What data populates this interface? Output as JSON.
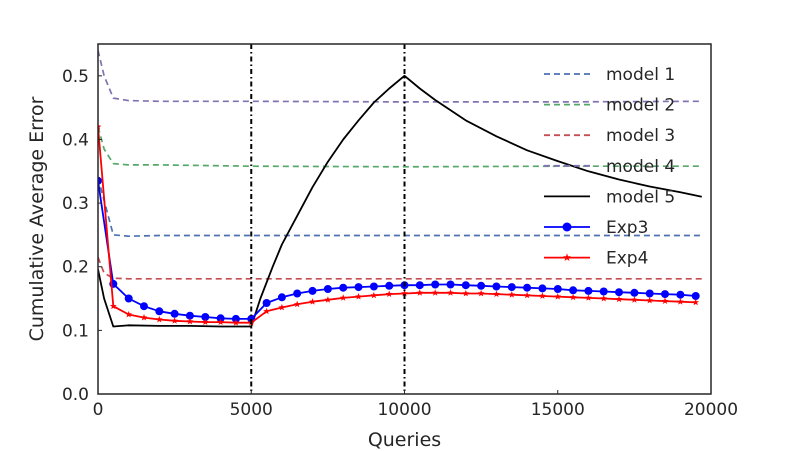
{
  "chart_data": {
    "type": "line",
    "title": "",
    "xlabel": "Queries",
    "ylabel": "Cumulative Average Error",
    "xlim": [
      0,
      20000
    ],
    "ylim": [
      0.0,
      0.55
    ],
    "xticks": [
      0,
      5000,
      10000,
      15000,
      20000
    ],
    "yticks": [
      0.0,
      0.1,
      0.2,
      0.3,
      0.4,
      0.5
    ],
    "xtick_labels": [
      "0",
      "5000",
      "10000",
      "15000",
      "20000"
    ],
    "ytick_labels": [
      "0.0",
      "0.1",
      "0.2",
      "0.3",
      "0.4",
      "0.5"
    ],
    "grid": false,
    "legend_position": "upper-right",
    "vlines": [
      5000,
      10000
    ],
    "series": [
      {
        "name": "model 1",
        "color": "#4c72b0",
        "style": "dashed",
        "x": [
          0,
          500,
          1000,
          2000,
          5000,
          10000,
          15000,
          19700
        ],
        "y": [
          0.34,
          0.25,
          0.248,
          0.249,
          0.249,
          0.249,
          0.249,
          0.249
        ]
      },
      {
        "name": "model 2",
        "color": "#55a868",
        "style": "dashed",
        "x": [
          0,
          200,
          500,
          1000,
          2000,
          5000,
          10000,
          15000,
          19700
        ],
        "y": [
          0.42,
          0.385,
          0.362,
          0.36,
          0.36,
          0.358,
          0.357,
          0.358,
          0.358
        ]
      },
      {
        "name": "model 3",
        "color": "#c44e52",
        "style": "dashed",
        "x": [
          0,
          200,
          500,
          1000,
          5000,
          10000,
          15000,
          19700
        ],
        "y": [
          0.215,
          0.19,
          0.182,
          0.181,
          0.181,
          0.181,
          0.181,
          0.181
        ]
      },
      {
        "name": "model 4",
        "color": "#8172b2",
        "style": "dashed",
        "x": [
          0,
          200,
          500,
          1000,
          2000,
          5000,
          10000,
          15000,
          19700
        ],
        "y": [
          0.54,
          0.5,
          0.465,
          0.461,
          0.46,
          0.46,
          0.459,
          0.459,
          0.46
        ]
      },
      {
        "name": "model 5",
        "color": "#000000",
        "style": "solid",
        "x": [
          0,
          200,
          500,
          1000,
          2000,
          3000,
          4000,
          5000,
          5300,
          5700,
          6000,
          6500,
          7000,
          7500,
          8000,
          8500,
          9000,
          9500,
          10000,
          10500,
          11000,
          12000,
          13000,
          14000,
          15000,
          16000,
          17000,
          18000,
          19000,
          19700
        ],
        "y": [
          0.196,
          0.15,
          0.106,
          0.108,
          0.107,
          0.107,
          0.106,
          0.106,
          0.15,
          0.2,
          0.235,
          0.28,
          0.325,
          0.365,
          0.4,
          0.43,
          0.458,
          0.48,
          0.5,
          0.48,
          0.462,
          0.43,
          0.405,
          0.383,
          0.366,
          0.35,
          0.337,
          0.326,
          0.317,
          0.31
        ]
      },
      {
        "name": "Exp3",
        "color": "#0000ff",
        "style": "solid",
        "marker": "circle",
        "x": [
          0,
          500,
          1000,
          1500,
          2000,
          2500,
          3000,
          3500,
          4000,
          4500,
          5000,
          5500,
          6000,
          6500,
          7000,
          7500,
          8000,
          8500,
          9000,
          9500,
          10000,
          10500,
          11000,
          11500,
          12000,
          12500,
          13000,
          13500,
          14000,
          14500,
          15000,
          15500,
          16000,
          16500,
          17000,
          17500,
          18000,
          18500,
          19000,
          19500
        ],
        "y": [
          0.335,
          0.173,
          0.15,
          0.138,
          0.13,
          0.126,
          0.123,
          0.121,
          0.119,
          0.118,
          0.118,
          0.143,
          0.152,
          0.158,
          0.162,
          0.165,
          0.167,
          0.168,
          0.169,
          0.17,
          0.171,
          0.171,
          0.172,
          0.172,
          0.171,
          0.17,
          0.169,
          0.168,
          0.167,
          0.166,
          0.165,
          0.163,
          0.162,
          0.161,
          0.16,
          0.159,
          0.158,
          0.157,
          0.156,
          0.154
        ]
      },
      {
        "name": "Exp4",
        "color": "#ff0000",
        "style": "solid",
        "marker": "star",
        "x": [
          0,
          500,
          1000,
          1500,
          2000,
          2500,
          3000,
          3500,
          4000,
          4500,
          5000,
          5500,
          6000,
          6500,
          7000,
          7500,
          8000,
          8500,
          9000,
          9500,
          10000,
          10500,
          11000,
          11500,
          12000,
          12500,
          13000,
          13500,
          14000,
          14500,
          15000,
          15500,
          16000,
          16500,
          17000,
          17500,
          18000,
          18500,
          19000,
          19500
        ],
        "y": [
          0.42,
          0.138,
          0.125,
          0.12,
          0.117,
          0.115,
          0.114,
          0.113,
          0.113,
          0.112,
          0.112,
          0.13,
          0.136,
          0.141,
          0.145,
          0.148,
          0.151,
          0.153,
          0.155,
          0.157,
          0.158,
          0.159,
          0.159,
          0.159,
          0.158,
          0.158,
          0.157,
          0.156,
          0.155,
          0.154,
          0.153,
          0.152,
          0.151,
          0.15,
          0.149,
          0.148,
          0.147,
          0.146,
          0.145,
          0.144
        ]
      }
    ]
  }
}
